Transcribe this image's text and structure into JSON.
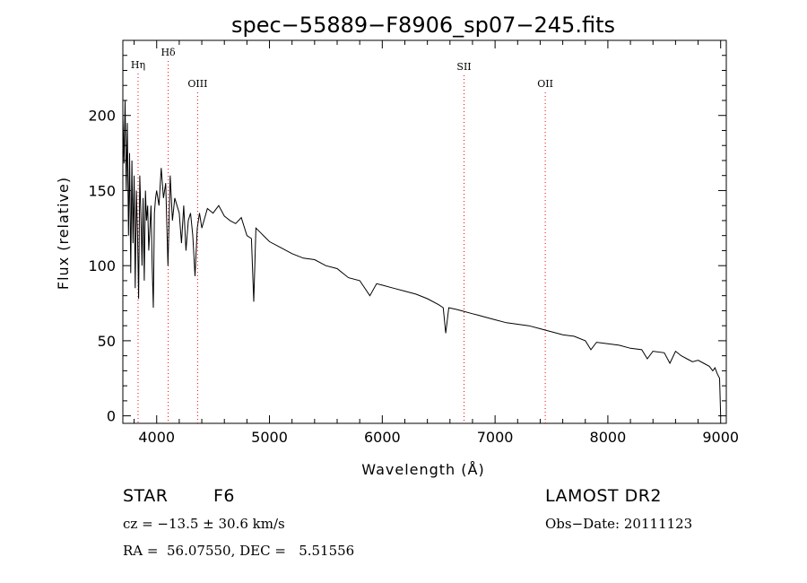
{
  "chart_data": {
    "type": "line",
    "title": "spec−55889−F8906_sp07−245.fits",
    "xlabel": "Wavelength (Å)",
    "ylabel": "Flux (relative)",
    "xlim": [
      3700,
      9050
    ],
    "ylim": [
      -5,
      250
    ],
    "xticks": [
      4000,
      5000,
      6000,
      7000,
      8000,
      9000
    ],
    "yticks": [
      0,
      50,
      100,
      150,
      200
    ],
    "grid": false,
    "line_color": "#000000",
    "marker_color": "#ff0000",
    "line_markers": [
      {
        "label": "Hη",
        "wavelength": 3835
      },
      {
        "label": "Hδ",
        "wavelength": 4102
      },
      {
        "label": "OIII",
        "wavelength": 4363
      },
      {
        "label": "SII",
        "wavelength": 6725
      },
      {
        "label": "OII",
        "wavelength": 7445
      }
    ],
    "series": [
      {
        "x": [
          3700,
          3710,
          3720,
          3730,
          3740,
          3750,
          3760,
          3770,
          3780,
          3790,
          3800,
          3810,
          3820,
          3830,
          3840,
          3850,
          3860,
          3870,
          3880,
          3890,
          3900,
          3910,
          3920,
          3930,
          3940,
          3950,
          3960,
          3970,
          3980,
          3990,
          4000,
          4020,
          4040,
          4060,
          4080,
          4100,
          4120,
          4140,
          4160,
          4180,
          4200,
          4220,
          4240,
          4260,
          4280,
          4300,
          4320,
          4340,
          4360,
          4380,
          4400,
          4450,
          4500,
          4550,
          4600,
          4650,
          4700,
          4750,
          4800,
          4840,
          4861,
          4880,
          4920,
          4960,
          5000,
          5100,
          5200,
          5300,
          5400,
          5500,
          5600,
          5700,
          5800,
          5890,
          5950,
          6000,
          6100,
          6200,
          6300,
          6400,
          6500,
          6540,
          6563,
          6590,
          6650,
          6700,
          6800,
          6850,
          6900,
          7000,
          7100,
          7200,
          7300,
          7400,
          7500,
          7600,
          7700,
          7800,
          7850,
          7900,
          8000,
          8100,
          8200,
          8300,
          8350,
          8400,
          8500,
          8550,
          8600,
          8650,
          8700,
          8750,
          8800,
          8850,
          8900,
          8930,
          8950,
          8970,
          8990,
          9000
        ],
        "y": [
          200,
          168,
          210,
          150,
          195,
          120,
          175,
          95,
          170,
          115,
          160,
          85,
          150,
          120,
          78,
          160,
          135,
          100,
          145,
          90,
          150,
          130,
          140,
          110,
          125,
          140,
          100,
          72,
          135,
          145,
          150,
          140,
          165,
          145,
          155,
          100,
          160,
          130,
          145,
          140,
          135,
          115,
          140,
          110,
          130,
          135,
          120,
          93,
          125,
          135,
          125,
          138,
          135,
          140,
          133,
          130,
          128,
          132,
          120,
          118,
          76,
          125,
          122,
          119,
          116,
          112,
          108,
          105,
          104,
          100,
          98,
          92,
          90,
          80,
          88,
          87,
          85,
          83,
          81,
          78,
          74,
          72,
          55,
          72,
          71,
          70,
          68,
          67,
          66,
          64,
          62,
          61,
          60,
          58,
          56,
          54,
          53,
          50,
          44,
          49,
          48,
          47,
          45,
          44,
          38,
          43,
          42,
          35,
          43,
          40,
          38,
          36,
          37,
          35,
          33,
          30,
          32,
          28,
          25,
          0
        ]
      }
    ]
  },
  "info": {
    "object_type": "STAR",
    "subclass": "F6",
    "survey": "LAMOST DR2",
    "redshift": "cz = −13.5 ± 30.6 km/s",
    "obs_date": "Obs−Date: 20111123",
    "coords": "RA =  56.07550, DEC =   5.51556"
  }
}
